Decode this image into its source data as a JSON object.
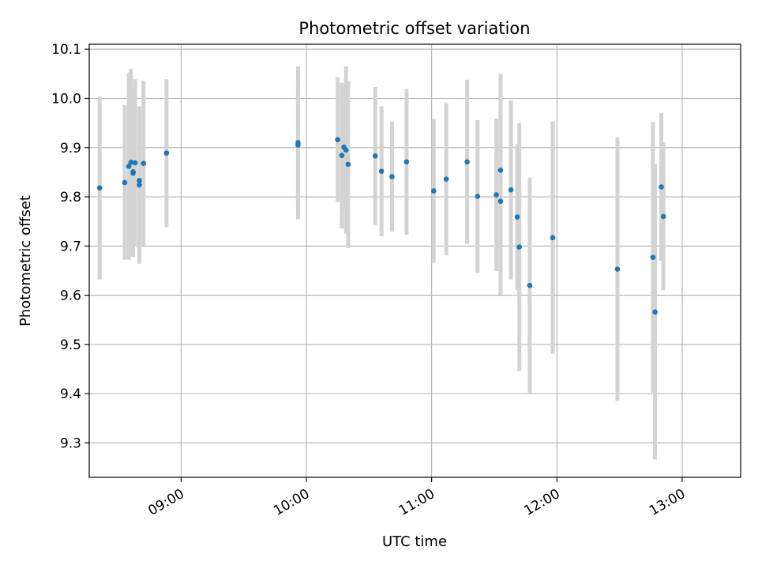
{
  "chart_data": {
    "type": "scatter",
    "title": "Photometric offset variation",
    "xlabel": "UTC time",
    "ylabel": "Photometric offset",
    "x_tick_labels": [
      "09:00",
      "10:00",
      "11:00",
      "12:00",
      "13:00"
    ],
    "y_tick_labels": [
      "9.3",
      "9.4",
      "9.5",
      "9.6",
      "9.7",
      "9.8",
      "9.9",
      "10.0",
      "10.1"
    ],
    "xlim": [
      "08:16",
      "13:28"
    ],
    "ylim": [
      9.23,
      10.11
    ],
    "grid": true,
    "marker_color": "#1f77b4",
    "errorbar_color": "#d3d3d3",
    "series": [
      {
        "x": [
          "08:21",
          "08:33",
          "08:35",
          "08:36",
          "08:37",
          "08:37",
          "08:38",
          "08:40",
          "08:40",
          "08:42",
          "08:53",
          "09:56",
          "09:56",
          "10:15",
          "10:17",
          "10:18",
          "10:19",
          "10:20",
          "10:33",
          "10:36",
          "10:41",
          "10:48",
          "11:01",
          "11:07",
          "11:17",
          "11:22",
          "11:31",
          "11:33",
          "11:33",
          "11:38",
          "11:41",
          "11:42",
          "11:47",
          "11:58",
          "12:29",
          "12:46",
          "12:47",
          "12:50",
          "12:51"
        ],
        "y": [
          9.818,
          9.829,
          9.862,
          9.87,
          9.851,
          9.848,
          9.869,
          9.824,
          9.833,
          9.868,
          9.889,
          9.905,
          9.91,
          9.916,
          9.884,
          9.901,
          9.895,
          9.866,
          9.883,
          9.852,
          9.841,
          9.871,
          9.812,
          9.836,
          9.871,
          9.801,
          9.804,
          9.791,
          9.854,
          9.814,
          9.759,
          9.698,
          9.62,
          9.717,
          9.653,
          9.677,
          9.566,
          9.82,
          9.76
        ],
        "error": [
          0.186,
          0.157,
          0.19,
          0.19,
          0.17,
          0.17,
          0.17,
          0.16,
          0.15,
          0.168,
          0.15,
          0.127,
          0.155,
          0.127,
          0.148,
          0.13,
          0.17,
          0.17,
          0.14,
          0.132,
          0.112,
          0.148,
          0.146,
          0.155,
          0.167,
          0.155,
          0.155,
          0.19,
          0.196,
          0.182,
          0.148,
          0.252,
          0.219,
          0.236,
          0.268,
          0.275,
          0.3,
          0.15,
          0.15
        ]
      }
    ]
  }
}
